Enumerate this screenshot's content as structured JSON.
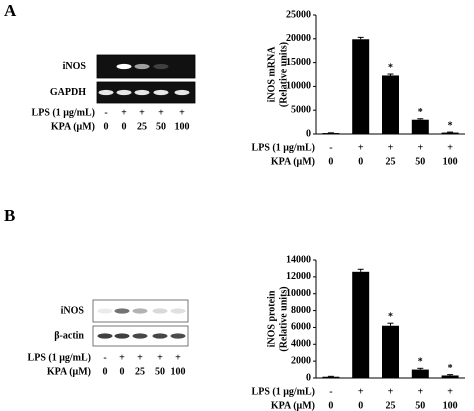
{
  "panels": [
    {
      "label": "A",
      "blot": {
        "bands": [
          "iNOS",
          "GAPDH"
        ],
        "conditions": [
          {
            "label": "LPS (1 μg/mL)",
            "values": [
              "-",
              "+",
              "+",
              "+",
              "+"
            ]
          },
          {
            "label": "KPA (μM)",
            "values": [
              "0",
              "0",
              "25",
              "50",
              "100"
            ]
          }
        ]
      }
    },
    {
      "label": "B",
      "blot": {
        "bands": [
          "iNOS",
          "β-actin"
        ],
        "conditions": [
          {
            "label": "LPS (1 μg/mL)",
            "values": [
              "-",
              "+",
              "+",
              "+",
              "+"
            ]
          },
          {
            "label": "KPA (μM)",
            "values": [
              "0",
              "0",
              "25",
              "50",
              "100"
            ]
          }
        ]
      }
    }
  ],
  "chart_data": [
    {
      "type": "bar",
      "ylabel": [
        "iNOS mRNA",
        "(Relative units)"
      ],
      "condition_rows": [
        {
          "label": "LPS (1 μg/mL)",
          "values": [
            "-",
            "+",
            "+",
            "+",
            "+"
          ]
        },
        {
          "label": "KPA (μM)",
          "values": [
            "0",
            "0",
            "25",
            "50",
            "100"
          ]
        }
      ],
      "values": [
        200,
        19900,
        12300,
        3000,
        300
      ],
      "errors": [
        50,
        400,
        300,
        200,
        100
      ],
      "annotations": [
        null,
        null,
        "*",
        "*",
        "*"
      ],
      "color": "#000000",
      "ylim": [
        0,
        25000
      ],
      "yticks": [
        0,
        5000,
        10000,
        15000,
        20000,
        25000
      ]
    },
    {
      "type": "bar",
      "ylabel": [
        "iNOS protein",
        "(Relative units)"
      ],
      "condition_rows": [
        {
          "label": "LPS (1 μg/mL)",
          "values": [
            "-",
            "+",
            "+",
            "+",
            "+"
          ]
        },
        {
          "label": "KPA (μM)",
          "values": [
            "0",
            "0",
            "25",
            "50",
            "100"
          ]
        }
      ],
      "values": [
        150,
        12600,
        6200,
        1000,
        300
      ],
      "errors": [
        50,
        300,
        300,
        150,
        100
      ],
      "annotations": [
        null,
        null,
        "*",
        "*",
        "*"
      ],
      "color": "#000000",
      "ylim": [
        0,
        14000
      ],
      "yticks": [
        0,
        2000,
        4000,
        6000,
        8000,
        10000,
        12000,
        14000
      ]
    }
  ]
}
